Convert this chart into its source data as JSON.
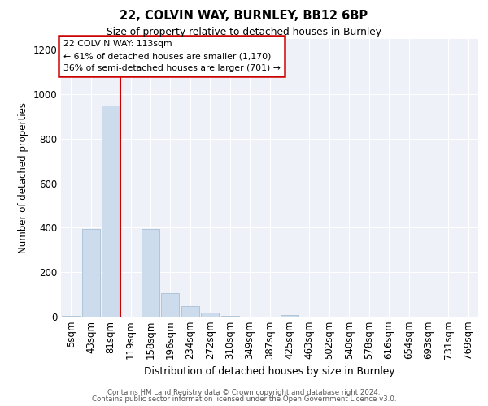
{
  "title1": "22, COLVIN WAY, BURNLEY, BB12 6BP",
  "title2": "Size of property relative to detached houses in Burnley",
  "xlabel": "Distribution of detached houses by size in Burnley",
  "ylabel": "Number of detached properties",
  "categories": [
    "5sqm",
    "43sqm",
    "81sqm",
    "119sqm",
    "158sqm",
    "196sqm",
    "234sqm",
    "272sqm",
    "310sqm",
    "349sqm",
    "387sqm",
    "425sqm",
    "463sqm",
    "502sqm",
    "540sqm",
    "578sqm",
    "616sqm",
    "654sqm",
    "693sqm",
    "731sqm",
    "769sqm"
  ],
  "values": [
    2,
    395,
    950,
    0,
    395,
    105,
    48,
    20,
    5,
    0,
    0,
    8,
    0,
    0,
    0,
    0,
    0,
    0,
    0,
    0,
    0
  ],
  "bar_color": "#ccdcec",
  "bar_edge_color": "#a8c0d4",
  "red_line_x": 3.0,
  "annotation_text": "22 COLVIN WAY: 113sqm\n← 61% of detached houses are smaller (1,170)\n36% of semi-detached houses are larger (701) →",
  "annotation_box_color": "#cc0000",
  "ylim": [
    0,
    1250
  ],
  "yticks": [
    0,
    200,
    400,
    600,
    800,
    1000,
    1200
  ],
  "background_color": "#eef2f8",
  "grid_color": "#ffffff",
  "footer1": "Contains HM Land Registry data © Crown copyright and database right 2024.",
  "footer2": "Contains public sector information licensed under the Open Government Licence v3.0."
}
